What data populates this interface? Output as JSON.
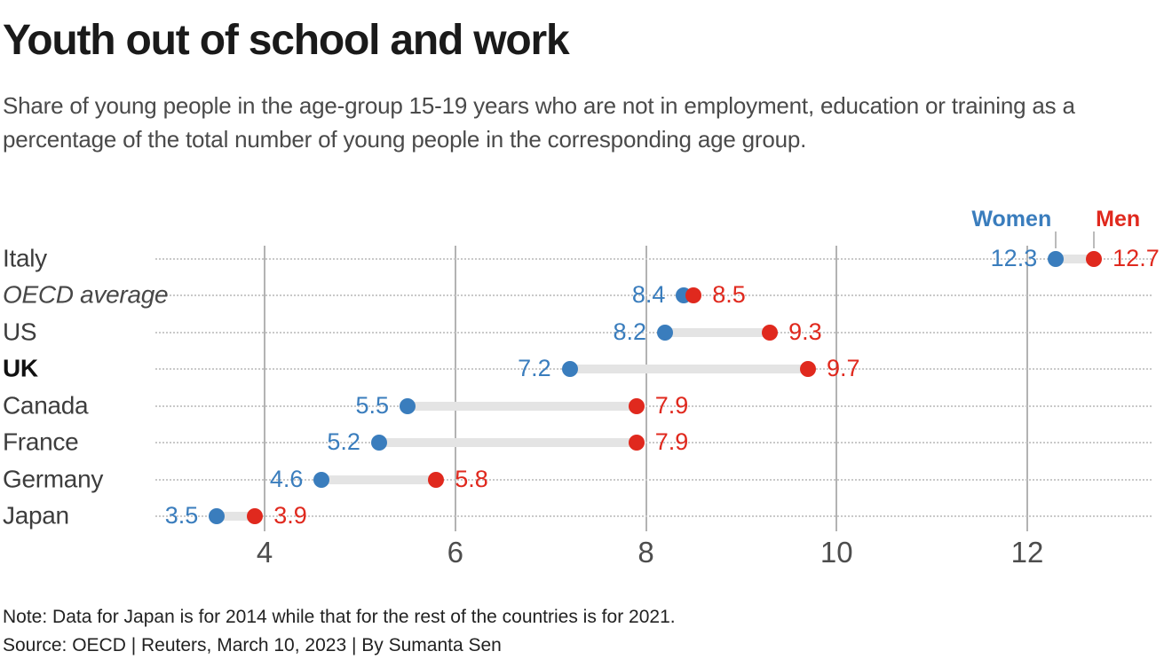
{
  "chart_data": {
    "type": "dumbbell-dot-plot",
    "title": "Youth out of school and work",
    "subtitle": "Share of young people in the age-group 15-19 years who are not in employment, education or training as a percentage of the total number of young people in the corresponding age group.",
    "legend": [
      {
        "name": "Women",
        "color": "#3a7dbd"
      },
      {
        "name": "Men",
        "color": "#e0291e"
      }
    ],
    "legend_position": "top-right",
    "categories": [
      {
        "label": "Italy",
        "style": "normal"
      },
      {
        "label": "OECD average",
        "style": "italic"
      },
      {
        "label": "US",
        "style": "normal"
      },
      {
        "label": "UK",
        "style": "bold"
      },
      {
        "label": "Canada",
        "style": "normal"
      },
      {
        "label": "France",
        "style": "normal"
      },
      {
        "label": "Germany",
        "style": "normal"
      },
      {
        "label": "Japan",
        "style": "normal"
      }
    ],
    "series": [
      {
        "name": "Women",
        "color": "#3a7dbd",
        "values": [
          12.3,
          8.4,
          8.2,
          7.2,
          5.5,
          5.2,
          4.6,
          3.5
        ]
      },
      {
        "name": "Men",
        "color": "#e0291e",
        "values": [
          12.7,
          8.5,
          9.3,
          9.7,
          7.9,
          7.9,
          5.8,
          3.9
        ]
      }
    ],
    "x_ticks": [
      4,
      6,
      8,
      10,
      12
    ],
    "xlim": [
      2.85,
      13.3
    ],
    "xlabel": "",
    "ylabel": "",
    "grid": "vertical-solid-and-horizontal-dotted",
    "style_colors": {
      "band": "#e4e4e4",
      "grid_solid": "#b3b3b3",
      "grid_dotted": "#c9c9c9"
    },
    "note": "Note: Data for Japan is for 2014 while that for the rest of the countries is for 2021.",
    "source": "Source: OECD | Reuters, March 10, 2023 | By Sumanta Sen"
  }
}
